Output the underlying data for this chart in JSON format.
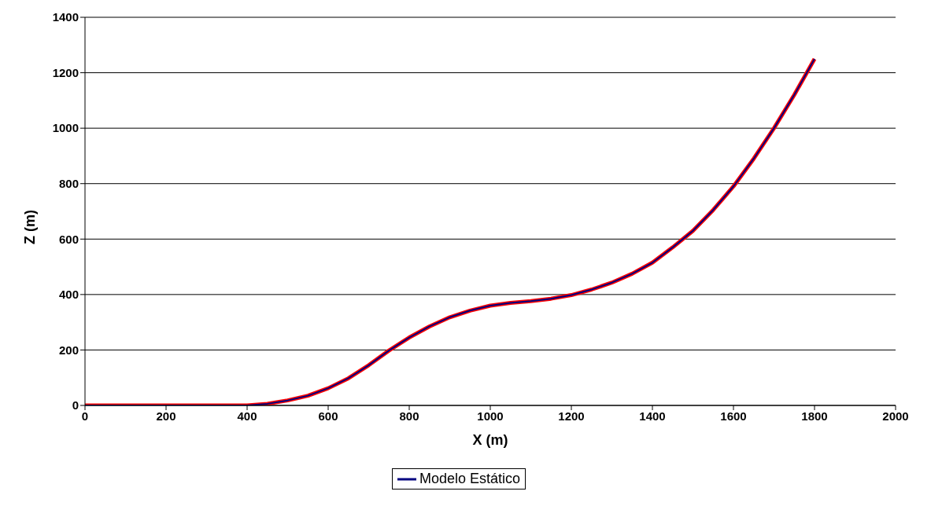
{
  "chart_data": {
    "type": "line",
    "xlabel": "X (m)",
    "ylabel": "Z (m)",
    "x": [
      0,
      400,
      450,
      500,
      550,
      600,
      650,
      700,
      750,
      800,
      850,
      900,
      950,
      1000,
      1050,
      1100,
      1150,
      1200,
      1250,
      1300,
      1350,
      1400,
      1450,
      1500,
      1550,
      1600,
      1650,
      1700,
      1750,
      1800
    ],
    "series": [
      {
        "color": "#ff0000",
        "values": [
          0,
          0,
          6,
          18,
          35,
          62,
          98,
          145,
          198,
          245,
          285,
          318,
          342,
          360,
          370,
          376,
          385,
          398,
          418,
          443,
          475,
          515,
          570,
          630,
          705,
          790,
          890,
          1000,
          1120,
          1250
        ]
      },
      {
        "name": "Modelo Estático",
        "color": "#000080",
        "values": [
          0,
          0,
          6,
          18,
          35,
          62,
          98,
          145,
          198,
          245,
          285,
          318,
          342,
          360,
          370,
          376,
          385,
          398,
          418,
          443,
          475,
          515,
          570,
          630,
          705,
          790,
          890,
          1000,
          1120,
          1250
        ]
      }
    ],
    "xlim": [
      0,
      2000
    ],
    "xticks": [
      0,
      200,
      400,
      600,
      800,
      1000,
      1200,
      1400,
      1600,
      1800,
      2000
    ],
    "ylim": [
      0,
      1400
    ],
    "yticks": [
      0,
      200,
      400,
      600,
      800,
      1000,
      1200,
      1400
    ],
    "grid": "y",
    "legend": "bottom",
    "marker": "none",
    "line_style": "solid"
  }
}
